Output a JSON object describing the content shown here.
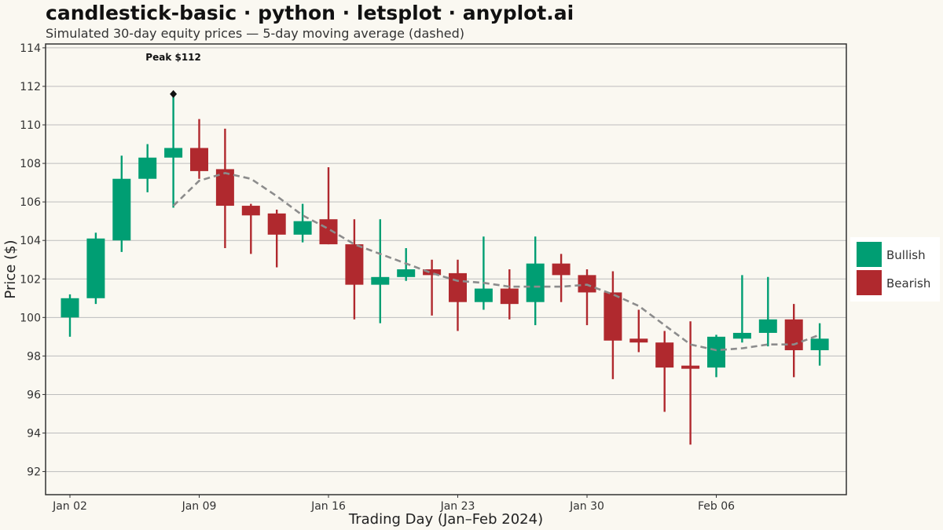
{
  "title": "candlestick-basic · python · letsplot · anyplot.ai",
  "subtitle": "Simulated 30-day equity prices — 5-day moving average (dashed)",
  "chart_data": {
    "type": "candlestick",
    "xlabel": "Trading Day (Jan–Feb 2024)",
    "ylabel": "Price ($)",
    "ylim": [
      90.8,
      114.2
    ],
    "y_ticks": [
      92,
      94,
      96,
      98,
      100,
      102,
      104,
      106,
      108,
      110,
      112,
      114
    ],
    "x_ticks": [
      {
        "index": 0,
        "label": "Jan 02"
      },
      {
        "index": 5,
        "label": "Jan 09"
      },
      {
        "index": 10,
        "label": "Jan 16"
      },
      {
        "index": 15,
        "label": "Jan 23"
      },
      {
        "index": 20,
        "label": "Jan 30"
      },
      {
        "index": 25,
        "label": "Feb 06"
      }
    ],
    "grid": true,
    "legend_position": "right",
    "colors": {
      "bullish": "#009E73",
      "bearish": "#B0292E",
      "ma": "#8C8C8C",
      "annotation": "#111111"
    },
    "legend": [
      {
        "key": "bullish",
        "label": "Bullish"
      },
      {
        "key": "bearish",
        "label": "Bearish"
      }
    ],
    "candles": [
      {
        "open": 100.0,
        "high": 101.2,
        "low": 99.0,
        "close": 101.0
      },
      {
        "open": 101.0,
        "high": 104.4,
        "low": 100.7,
        "close": 104.1
      },
      {
        "open": 104.0,
        "high": 108.4,
        "low": 103.4,
        "close": 107.2
      },
      {
        "open": 107.2,
        "high": 109.0,
        "low": 106.5,
        "close": 108.3
      },
      {
        "open": 108.3,
        "high": 111.6,
        "low": 105.7,
        "close": 108.8
      },
      {
        "open": 108.8,
        "high": 110.3,
        "low": 107.2,
        "close": 107.6
      },
      {
        "open": 107.7,
        "high": 109.8,
        "low": 103.6,
        "close": 105.8
      },
      {
        "open": 105.8,
        "high": 105.9,
        "low": 103.3,
        "close": 105.3
      },
      {
        "open": 105.4,
        "high": 105.6,
        "low": 102.6,
        "close": 104.3
      },
      {
        "open": 104.3,
        "high": 105.9,
        "low": 103.9,
        "close": 105.0
      },
      {
        "open": 105.1,
        "high": 107.8,
        "low": 103.8,
        "close": 103.8
      },
      {
        "open": 103.8,
        "high": 105.1,
        "low": 99.9,
        "close": 101.7
      },
      {
        "open": 101.7,
        "high": 105.1,
        "low": 99.7,
        "close": 102.1
      },
      {
        "open": 102.1,
        "high": 103.6,
        "low": 101.9,
        "close": 102.5
      },
      {
        "open": 102.5,
        "high": 103.0,
        "low": 100.1,
        "close": 102.2
      },
      {
        "open": 102.3,
        "high": 103.0,
        "low": 99.3,
        "close": 100.8
      },
      {
        "open": 100.8,
        "high": 104.2,
        "low": 100.4,
        "close": 101.5
      },
      {
        "open": 101.5,
        "high": 102.5,
        "low": 99.9,
        "close": 100.7
      },
      {
        "open": 100.8,
        "high": 104.2,
        "low": 99.6,
        "close": 102.8
      },
      {
        "open": 102.8,
        "high": 103.3,
        "low": 100.8,
        "close": 102.2
      },
      {
        "open": 102.2,
        "high": 102.5,
        "low": 99.6,
        "close": 101.3
      },
      {
        "open": 101.3,
        "high": 102.4,
        "low": 96.8,
        "close": 98.8
      },
      {
        "open": 98.9,
        "high": 100.4,
        "low": 98.2,
        "close": 98.7
      },
      {
        "open": 98.7,
        "high": 99.3,
        "low": 95.1,
        "close": 97.4
      },
      {
        "open": 97.5,
        "high": 99.8,
        "low": 93.4,
        "close": 97.4
      },
      {
        "open": 97.4,
        "high": 99.1,
        "low": 96.9,
        "close": 99.0
      },
      {
        "open": 98.9,
        "high": 102.2,
        "low": 98.7,
        "close": 99.2
      },
      {
        "open": 99.2,
        "high": 102.1,
        "low": 98.5,
        "close": 99.9
      },
      {
        "open": 99.9,
        "high": 100.7,
        "low": 96.9,
        "close": 98.3
      },
      {
        "open": 98.3,
        "high": 99.7,
        "low": 97.5,
        "close": 98.9
      }
    ],
    "moving_average": [
      {
        "index": 4,
        "value": 105.8
      },
      {
        "index": 5,
        "value": 107.1
      },
      {
        "index": 6,
        "value": 107.5
      },
      {
        "index": 7,
        "value": 107.2
      },
      {
        "index": 8,
        "value": 106.3
      },
      {
        "index": 9,
        "value": 105.3
      },
      {
        "index": 10,
        "value": 104.6
      },
      {
        "index": 11,
        "value": 103.8
      },
      {
        "index": 12,
        "value": 103.3
      },
      {
        "index": 13,
        "value": 102.8
      },
      {
        "index": 14,
        "value": 102.3
      },
      {
        "index": 15,
        "value": 101.9
      },
      {
        "index": 16,
        "value": 101.8
      },
      {
        "index": 17,
        "value": 101.6
      },
      {
        "index": 18,
        "value": 101.6
      },
      {
        "index": 19,
        "value": 101.6
      },
      {
        "index": 20,
        "value": 101.7
      },
      {
        "index": 21,
        "value": 101.2
      },
      {
        "index": 22,
        "value": 100.6
      },
      {
        "index": 23,
        "value": 99.6
      },
      {
        "index": 24,
        "value": 98.6
      },
      {
        "index": 25,
        "value": 98.3
      },
      {
        "index": 26,
        "value": 98.4
      },
      {
        "index": 27,
        "value": 98.6
      },
      {
        "index": 28,
        "value": 98.6
      },
      {
        "index": 29,
        "value": 99.1
      }
    ],
    "annotation": {
      "index": 4,
      "value": 111.6,
      "text": "Peak $112"
    }
  }
}
